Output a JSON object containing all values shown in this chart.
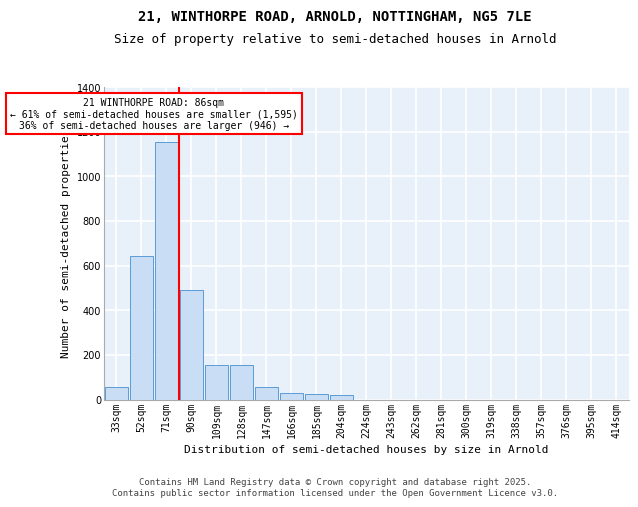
{
  "title_line1": "21, WINTHORPE ROAD, ARNOLD, NOTTINGHAM, NG5 7LE",
  "title_line2": "Size of property relative to semi-detached houses in Arnold",
  "xlabel": "Distribution of semi-detached houses by size in Arnold",
  "ylabel": "Number of semi-detached properties",
  "categories": [
    "33sqm",
    "52sqm",
    "71sqm",
    "90sqm",
    "109sqm",
    "128sqm",
    "147sqm",
    "166sqm",
    "185sqm",
    "204sqm",
    "224sqm",
    "243sqm",
    "262sqm",
    "281sqm",
    "300sqm",
    "319sqm",
    "338sqm",
    "357sqm",
    "376sqm",
    "395sqm",
    "414sqm"
  ],
  "values": [
    55,
    645,
    1155,
    490,
    155,
    155,
    55,
    30,
    25,
    20,
    0,
    0,
    0,
    0,
    0,
    0,
    0,
    0,
    0,
    0,
    0
  ],
  "bar_color": "#c9ddf5",
  "bar_edge_color": "#5b9bd5",
  "vline_color": "red",
  "vline_bin_index": 3,
  "annotation_line1": "21 WINTHORPE ROAD: 86sqm",
  "annotation_line2": "← 61% of semi-detached houses are smaller (1,595)",
  "annotation_line3": "36% of semi-detached houses are larger (946) →",
  "annotation_box_color": "white",
  "annotation_box_edge_color": "red",
  "ylim": [
    0,
    1400
  ],
  "yticks": [
    0,
    200,
    400,
    600,
    800,
    1000,
    1200,
    1400
  ],
  "background_color": "#e8f0fa",
  "grid_color": "white",
  "footer_text": "Contains HM Land Registry data © Crown copyright and database right 2025.\nContains public sector information licensed under the Open Government Licence v3.0.",
  "title_fontsize": 10,
  "subtitle_fontsize": 9,
  "axis_label_fontsize": 8,
  "tick_fontsize": 7,
  "footer_fontsize": 6.5
}
